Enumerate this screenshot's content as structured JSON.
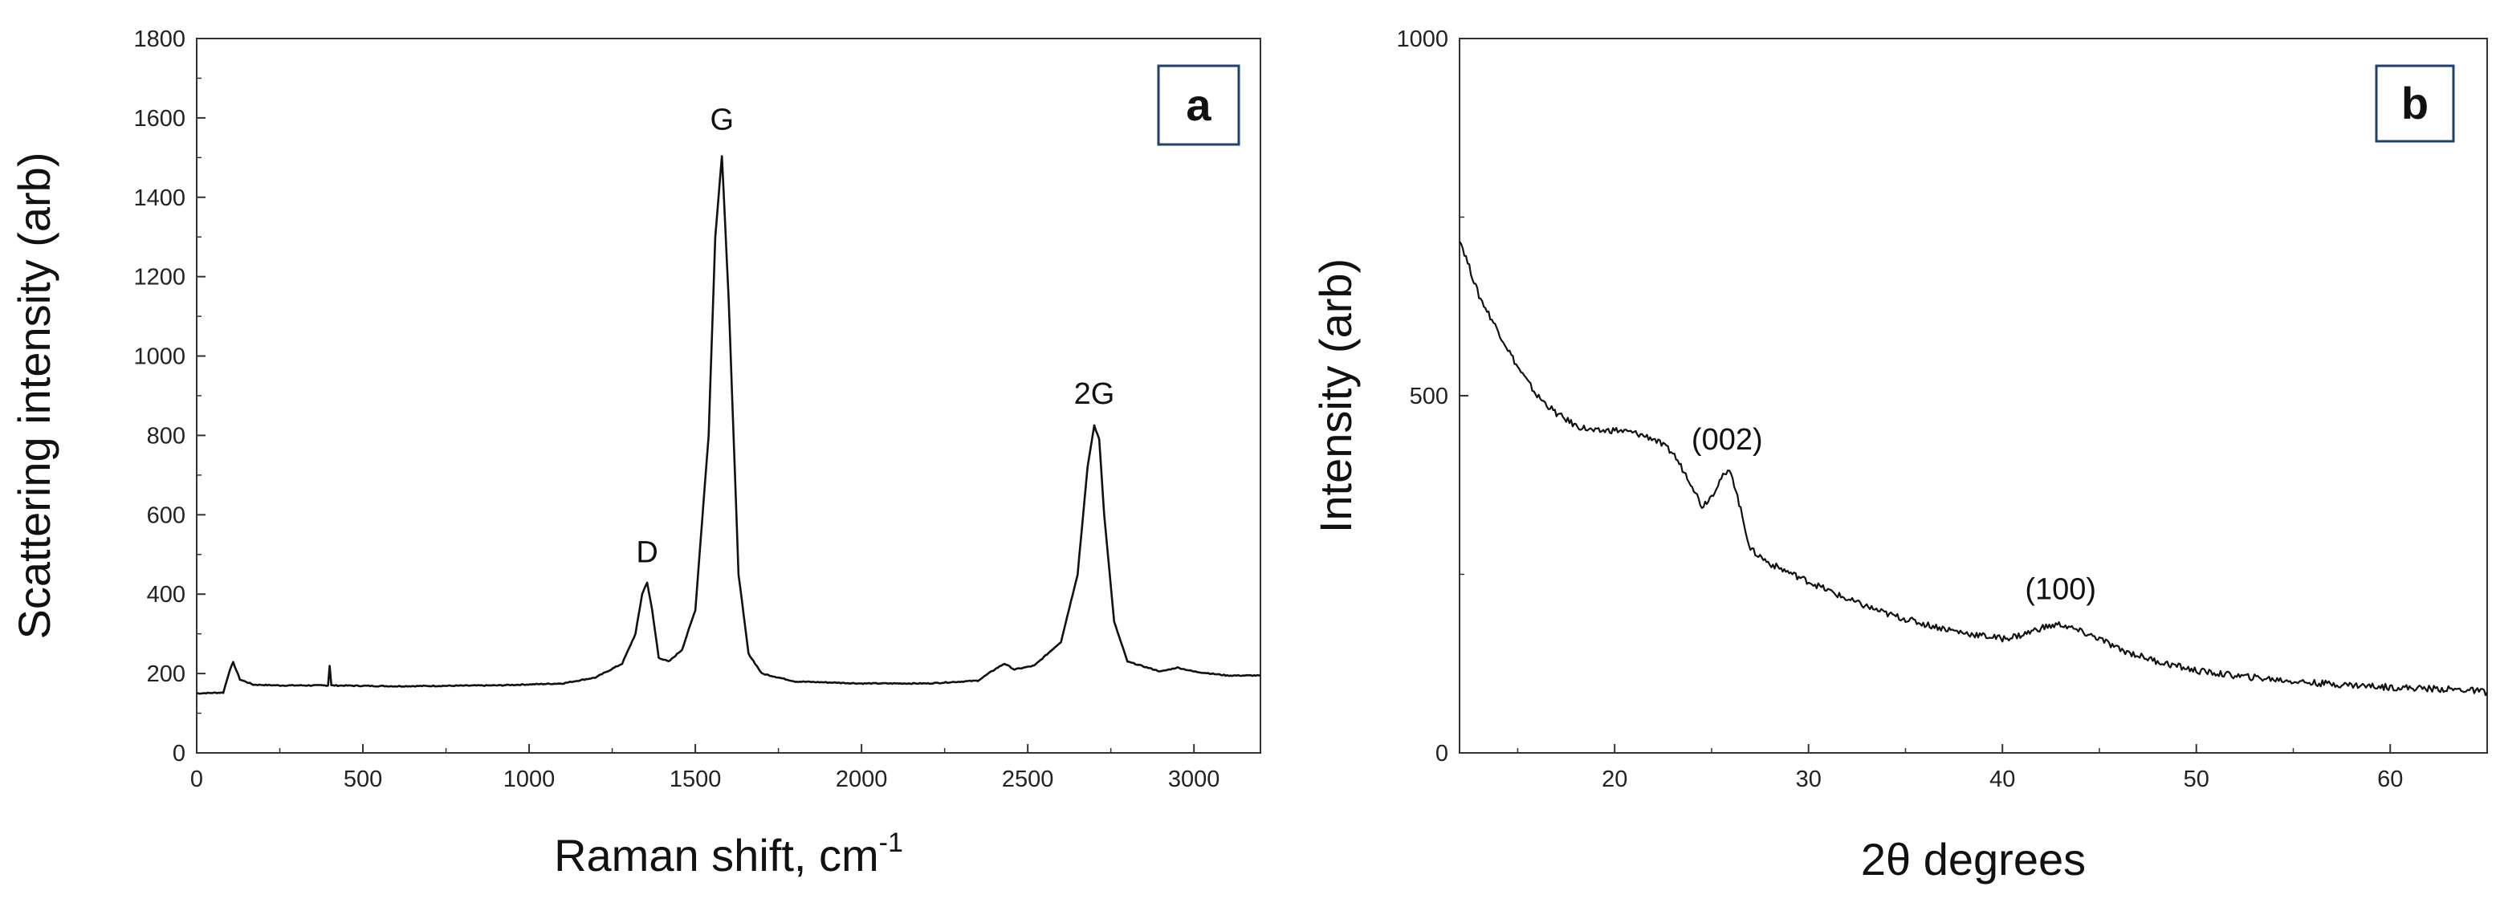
{
  "chart_data": [
    {
      "type": "line",
      "panel": "a",
      "xlabel": "Raman shift, cm",
      "xlabel_sup": "-1",
      "ylabel": "Scattering intensity (arb)",
      "xlim": [
        0,
        3200
      ],
      "ylim": [
        0,
        1800
      ],
      "xticks": [
        0,
        500,
        1000,
        1500,
        2000,
        2500,
        3000
      ],
      "yticks": [
        0,
        200,
        400,
        600,
        800,
        1000,
        1200,
        1400,
        1600,
        1800
      ],
      "x": [
        0,
        80,
        100,
        110,
        130,
        170,
        250,
        395,
        400,
        405,
        600,
        900,
        1100,
        1200,
        1280,
        1320,
        1340,
        1355,
        1370,
        1390,
        1420,
        1460,
        1500,
        1540,
        1560,
        1580,
        1600,
        1630,
        1660,
        1700,
        1800,
        2000,
        2200,
        2350,
        2400,
        2430,
        2460,
        2520,
        2600,
        2650,
        2680,
        2700,
        2715,
        2730,
        2760,
        2800,
        2900,
        2950,
        3000,
        3100,
        3200
      ],
      "y": [
        150,
        152,
        210,
        228,
        185,
        172,
        170,
        170,
        220,
        170,
        168,
        170,
        175,
        190,
        225,
        300,
        400,
        430,
        360,
        240,
        230,
        260,
        360,
        800,
        1300,
        1505,
        1150,
        450,
        250,
        200,
        180,
        175,
        175,
        182,
        210,
        225,
        210,
        220,
        280,
        450,
        720,
        825,
        790,
        600,
        330,
        230,
        205,
        215,
        205,
        195,
        195
      ],
      "annotations": [
        {
          "text": "G",
          "x": 1580,
          "y": 1570
        },
        {
          "text": "D",
          "x": 1355,
          "y": 480
        },
        {
          "text": "2G",
          "x": 2700,
          "y": 880
        }
      ],
      "panel_label": "a",
      "line_color": "#111111",
      "label_box_color": "#1f3f73"
    },
    {
      "type": "line",
      "panel": "b",
      "xlabel": "2θ degrees",
      "ylabel": "Intensity (arb)",
      "xlim": [
        12,
        65
      ],
      "ylim": [
        0,
        1000
      ],
      "xticks": [
        20,
        30,
        40,
        50,
        60
      ],
      "yticks": [
        0,
        500,
        1000
      ],
      "x": [
        12,
        12.5,
        13,
        14,
        15,
        16,
        17,
        18,
        19,
        20,
        21,
        22,
        23,
        24,
        24.5,
        25,
        25.5,
        26,
        26.5,
        27,
        28,
        30,
        32,
        34,
        36,
        38,
        40,
        41,
        42,
        43,
        44,
        45,
        46,
        48,
        50,
        52,
        54,
        56,
        58,
        60,
        62,
        64,
        65
      ],
      "y": [
        720,
        680,
        640,
        590,
        540,
        500,
        475,
        458,
        450,
        452,
        448,
        440,
        420,
        375,
        345,
        360,
        385,
        395,
        340,
        285,
        265,
        240,
        215,
        195,
        180,
        168,
        160,
        165,
        175,
        180,
        170,
        160,
        145,
        128,
        115,
        108,
        103,
        98,
        95,
        92,
        90,
        88,
        85
      ],
      "annotations": [
        {
          "text": "(002)",
          "x": 25.8,
          "y": 425
        },
        {
          "text": "(100)",
          "x": 43,
          "y": 215
        }
      ],
      "panel_label": "b",
      "line_color": "#111111",
      "label_box_color": "#1f3f73"
    }
  ]
}
